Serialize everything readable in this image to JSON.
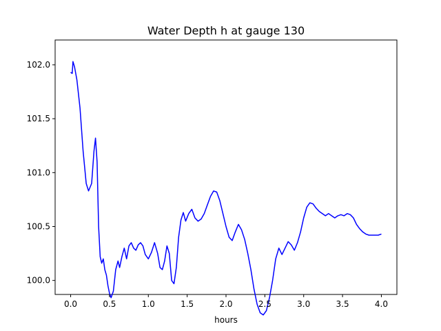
{
  "chart_data": {
    "type": "line",
    "title": "Water Depth h at gauge 130",
    "xlabel": "hours",
    "ylabel": "",
    "xlim": [
      -0.2,
      4.2
    ],
    "ylim": [
      99.87,
      102.23
    ],
    "xticks": [
      0.0,
      0.5,
      1.0,
      1.5,
      2.0,
      2.5,
      3.0,
      3.5,
      4.0
    ],
    "xtick_labels": [
      "0.0",
      "0.5",
      "1.0",
      "1.5",
      "2.0",
      "2.5",
      "3.0",
      "3.5",
      "4.0"
    ],
    "yticks": [
      100.0,
      100.5,
      101.0,
      101.5,
      102.0
    ],
    "ytick_labels": [
      "100.0",
      "100.5",
      "101.0",
      "101.5",
      "102.0"
    ],
    "grid": false,
    "series": [
      {
        "name": "",
        "color": "#0000ff",
        "x": [
          0.0,
          0.02,
          0.03,
          0.05,
          0.08,
          0.12,
          0.16,
          0.2,
          0.23,
          0.27,
          0.3,
          0.32,
          0.34,
          0.36,
          0.38,
          0.4,
          0.42,
          0.44,
          0.46,
          0.48,
          0.5,
          0.52,
          0.55,
          0.58,
          0.61,
          0.63,
          0.66,
          0.69,
          0.72,
          0.75,
          0.78,
          0.81,
          0.84,
          0.87,
          0.9,
          0.93,
          0.96,
          1.0,
          1.04,
          1.08,
          1.12,
          1.15,
          1.18,
          1.21,
          1.24,
          1.27,
          1.3,
          1.33,
          1.36,
          1.39,
          1.42,
          1.45,
          1.48,
          1.52,
          1.56,
          1.6,
          1.64,
          1.68,
          1.72,
          1.76,
          1.8,
          1.84,
          1.88,
          1.92,
          1.96,
          2.0,
          2.04,
          2.08,
          2.12,
          2.16,
          2.2,
          2.24,
          2.28,
          2.32,
          2.36,
          2.4,
          2.44,
          2.48,
          2.52,
          2.56,
          2.6,
          2.64,
          2.68,
          2.72,
          2.76,
          2.8,
          2.84,
          2.88,
          2.92,
          2.96,
          3.0,
          3.04,
          3.08,
          3.12,
          3.16,
          3.2,
          3.24,
          3.28,
          3.32,
          3.36,
          3.4,
          3.44,
          3.48,
          3.52,
          3.56,
          3.6,
          3.64,
          3.68,
          3.72,
          3.76,
          3.8,
          3.84,
          3.88,
          3.92,
          3.96,
          4.0
        ],
        "values": [
          101.93,
          101.92,
          102.03,
          101.98,
          101.86,
          101.6,
          101.2,
          100.9,
          100.83,
          100.9,
          101.2,
          101.32,
          101.1,
          100.5,
          100.22,
          100.16,
          100.2,
          100.1,
          100.05,
          99.95,
          99.88,
          99.84,
          99.9,
          100.1,
          100.18,
          100.12,
          100.22,
          100.3,
          100.2,
          100.32,
          100.35,
          100.3,
          100.28,
          100.33,
          100.35,
          100.32,
          100.24,
          100.2,
          100.26,
          100.35,
          100.25,
          100.12,
          100.1,
          100.18,
          100.32,
          100.25,
          100.0,
          99.97,
          100.12,
          100.4,
          100.56,
          100.63,
          100.55,
          100.62,
          100.66,
          100.58,
          100.55,
          100.57,
          100.62,
          100.7,
          100.78,
          100.83,
          100.82,
          100.74,
          100.62,
          100.5,
          100.4,
          100.37,
          100.45,
          100.52,
          100.47,
          100.38,
          100.25,
          100.1,
          99.92,
          99.78,
          99.7,
          99.68,
          99.72,
          99.84,
          100.0,
          100.2,
          100.3,
          100.24,
          100.3,
          100.36,
          100.33,
          100.28,
          100.35,
          100.45,
          100.58,
          100.68,
          100.72,
          100.71,
          100.67,
          100.64,
          100.62,
          100.6,
          100.62,
          100.6,
          100.58,
          100.6,
          100.61,
          100.6,
          100.62,
          100.61,
          100.58,
          100.52,
          100.48,
          100.45,
          100.43,
          100.42,
          100.42,
          100.42,
          100.42,
          100.43
        ]
      }
    ]
  }
}
